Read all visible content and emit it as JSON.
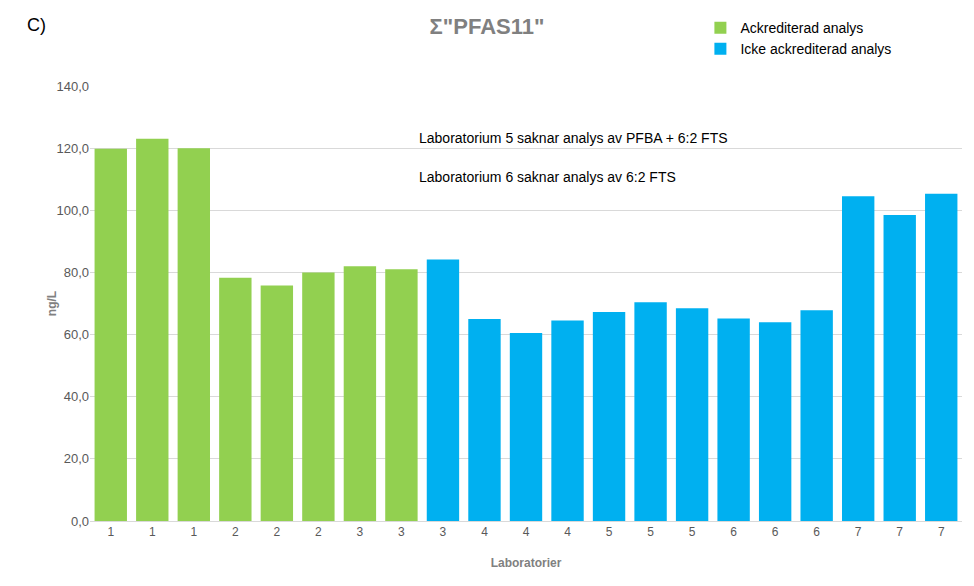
{
  "chart_data": {
    "type": "bar",
    "title": "Σ\"PFAS11\"",
    "panel_label": "C)",
    "x_label": "Laboratorier",
    "y_label": "ng/L",
    "categories": [
      "1",
      "1",
      "1",
      "2",
      "2",
      "2",
      "3",
      "3",
      "3",
      "4",
      "4",
      "4",
      "5",
      "5",
      "5",
      "6",
      "6",
      "6",
      "7",
      "7",
      "7"
    ],
    "series": [
      {
        "name": "Ackrediterad analys",
        "color": "#92D050",
        "values": [
          119.8,
          123.0,
          120.0,
          78.3,
          75.8,
          80.0,
          82.0,
          81.0,
          null,
          null,
          null,
          null,
          null,
          null,
          null,
          null,
          null,
          null,
          null,
          null,
          null
        ]
      },
      {
        "name": "Icke ackrediterad analys",
        "color": "#00B0F0",
        "values": [
          null,
          null,
          null,
          null,
          null,
          null,
          null,
          null,
          84.2,
          65.0,
          60.5,
          64.5,
          67.3,
          70.4,
          68.5,
          65.2,
          64.0,
          67.8,
          104.5,
          98.5,
          105.3
        ]
      }
    ],
    "annotations": [
      "Laboratorium 5 saknar analys av PFBA + 6:2 FTS",
      "Laboratorium 6 saknar analys av 6:2 FTS"
    ],
    "ylim": [
      0,
      140
    ],
    "yticks": [
      {
        "value": 0,
        "label": "0,0"
      },
      {
        "value": 20,
        "label": "20,0"
      },
      {
        "value": 40,
        "label": "40,0"
      },
      {
        "value": 60,
        "label": "60,0"
      },
      {
        "value": 80,
        "label": "80,0"
      },
      {
        "value": 100,
        "label": "100,0"
      },
      {
        "value": 120,
        "label": "120,0"
      },
      {
        "value": 140,
        "label": "140,0"
      }
    ],
    "grid": true,
    "legend": "top right"
  }
}
